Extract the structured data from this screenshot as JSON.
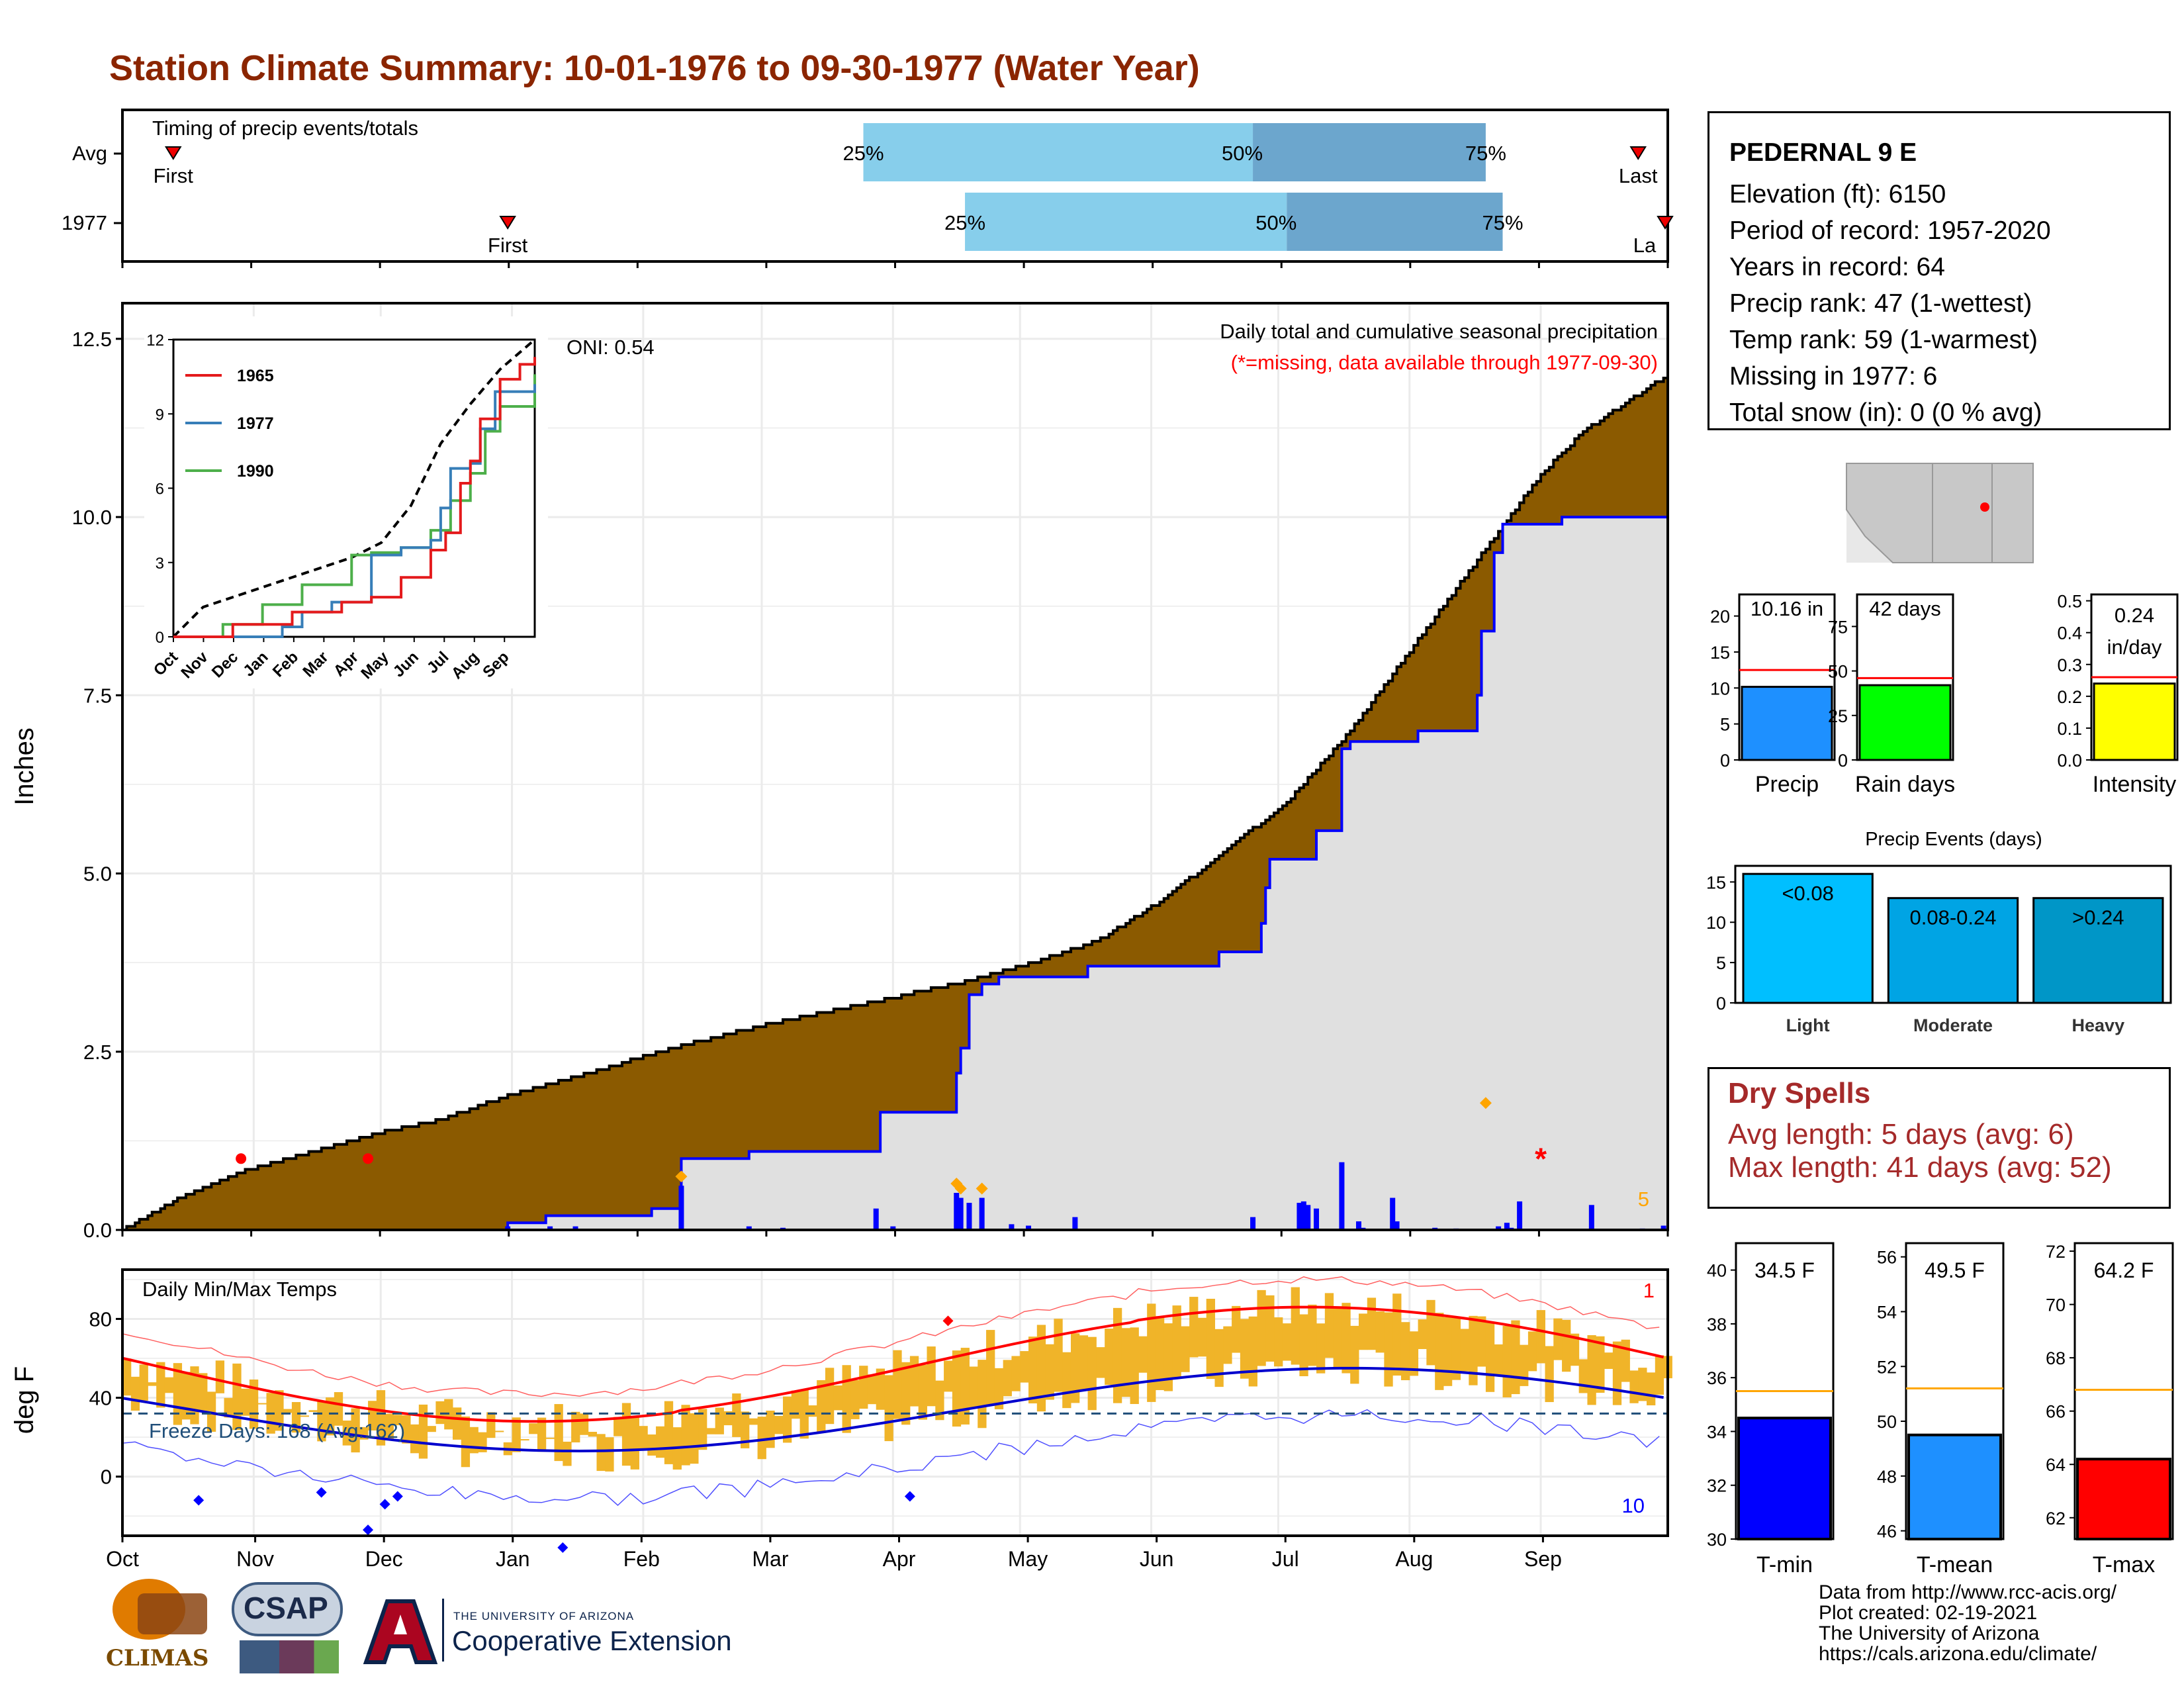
{
  "title": "Station Climate Summary: 10-01-1976 to 09-30-1977 (Water Year)",
  "colors": {
    "title": "#8b2500",
    "cum_avg": "#8b5a00",
    "cum_year": "#e0e0e0",
    "daily_bar": "#0000ff",
    "accent_red": "#ff0000",
    "temp_band": "#f0b429",
    "tmax_line": "#ff0000",
    "tmin_line": "#0000cd"
  },
  "months": [
    "Oct",
    "Nov",
    "Dec",
    "Jan",
    "Feb",
    "Mar",
    "Apr",
    "May",
    "Jun",
    "Jul",
    "Aug",
    "Sep"
  ],
  "timing": {
    "label": "Timing of precip events/totals",
    "rows": [
      {
        "label": "Avg",
        "first_day": 12,
        "p25_day": 175,
        "p50_day": 267,
        "p75_day": 322,
        "last_day": 358,
        "first_label": "First",
        "last_label": "Last"
      },
      {
        "label": "1977",
        "first_day": 91,
        "p25_day": 199,
        "p50_day": 275,
        "p75_day": 326,
        "last_day": 365,
        "first_label": "First",
        "last_label": "La"
      }
    ],
    "pct_labels": [
      "25%",
      "50%",
      "75%"
    ]
  },
  "precip": {
    "ylabel": "Inches",
    "yticks": [
      "0.0",
      "2.5",
      "5.0",
      "7.5",
      "10.0",
      "12.5"
    ],
    "ylim": [
      0,
      13.0
    ],
    "note1": "Daily total and cumulative seasonal precipitation",
    "note2": "(*=missing, data available through 1977-09-30)",
    "oni": "ONI: 0.54",
    "count_label": "5",
    "avg_cumulative_points": [
      [
        0,
        0
      ],
      [
        15,
        0.5
      ],
      [
        30,
        0.85
      ],
      [
        45,
        1.1
      ],
      [
        60,
        1.35
      ],
      [
        75,
        1.55
      ],
      [
        92,
        1.9
      ],
      [
        110,
        2.2
      ],
      [
        130,
        2.55
      ],
      [
        150,
        2.85
      ],
      [
        170,
        3.1
      ],
      [
        185,
        3.3
      ],
      [
        200,
        3.5
      ],
      [
        215,
        3.75
      ],
      [
        230,
        4.05
      ],
      [
        245,
        4.6
      ],
      [
        260,
        5.3
      ],
      [
        275,
        6.0
      ],
      [
        290,
        7.0
      ],
      [
        305,
        8.2
      ],
      [
        315,
        9.0
      ],
      [
        325,
        9.8
      ],
      [
        335,
        10.6
      ],
      [
        345,
        11.2
      ],
      [
        355,
        11.6
      ],
      [
        365,
        12.0
      ]
    ],
    "year_cumulative_points": [
      [
        0,
        0
      ],
      [
        90,
        0
      ],
      [
        91,
        0.1
      ],
      [
        100,
        0.2
      ],
      [
        125,
        0.3
      ],
      [
        132,
        1.0
      ],
      [
        148,
        1.1
      ],
      [
        178,
        1.1
      ],
      [
        179,
        1.65
      ],
      [
        195,
        1.65
      ],
      [
        197,
        2.2
      ],
      [
        198,
        2.55
      ],
      [
        200,
        3.3
      ],
      [
        203,
        3.45
      ],
      [
        207,
        3.55
      ],
      [
        220,
        3.55
      ],
      [
        228,
        3.7
      ],
      [
        248,
        3.7
      ],
      [
        259,
        3.9
      ],
      [
        268,
        3.9
      ],
      [
        269,
        4.3
      ],
      [
        270,
        4.8
      ],
      [
        271,
        5.2
      ],
      [
        282,
        5.6
      ],
      [
        288,
        6.75
      ],
      [
        290,
        6.85
      ],
      [
        306,
        7.0
      ],
      [
        320,
        7.5
      ],
      [
        321,
        8.4
      ],
      [
        324,
        9.5
      ],
      [
        326,
        9.9
      ],
      [
        340,
        10.0
      ],
      [
        361,
        10.0
      ],
      [
        365,
        10.16
      ]
    ],
    "daily_events": [
      [
        91,
        0.05
      ],
      [
        101,
        0.05
      ],
      [
        107,
        0.05
      ],
      [
        132,
        0.62
      ],
      [
        148,
        0.05
      ],
      [
        156,
        0.03
      ],
      [
        178,
        0.3
      ],
      [
        182,
        0.05
      ],
      [
        197,
        0.52
      ],
      [
        198,
        0.45
      ],
      [
        200,
        0.38
      ],
      [
        203,
        0.45
      ],
      [
        210,
        0.08
      ],
      [
        214,
        0.06
      ],
      [
        225,
        0.18
      ],
      [
        267,
        0.18
      ],
      [
        278,
        0.38
      ],
      [
        279,
        0.4
      ],
      [
        280,
        0.35
      ],
      [
        282,
        0.3
      ],
      [
        288,
        0.95
      ],
      [
        292,
        0.12
      ],
      [
        293,
        0.03
      ],
      [
        300,
        0.45
      ],
      [
        301,
        0.12
      ],
      [
        310,
        0.03
      ],
      [
        315,
        0.02
      ],
      [
        327,
        0.1
      ],
      [
        328,
        0.03
      ],
      [
        330,
        0.4
      ],
      [
        325,
        0.05
      ],
      [
        347,
        0.35
      ],
      [
        359,
        0.02
      ],
      [
        364,
        0.06
      ]
    ],
    "missing_markers": [
      [
        28,
        1.0
      ],
      [
        58,
        1.0
      ],
      [
        335,
        1.0
      ]
    ],
    "event_diamonds": [
      [
        132,
        0.62
      ],
      [
        197,
        0.52
      ],
      [
        198,
        0.45
      ],
      [
        203,
        0.45
      ],
      [
        322,
        1.65
      ]
    ]
  },
  "inset": {
    "yticks": [
      "0",
      "3",
      "6",
      "9",
      "12"
    ],
    "months": [
      "Oct",
      "Nov",
      "Dec",
      "Jan",
      "Feb",
      "Mar",
      "Apr",
      "May",
      "Jun",
      "Jul",
      "Aug",
      "Sep"
    ],
    "series": [
      {
        "name": "1965",
        "color": "#e41a1c"
      },
      {
        "name": "1977",
        "color": "#377eb8"
      },
      {
        "name": "1990",
        "color": "#4daf4a"
      }
    ]
  },
  "temp": {
    "ylabel": "deg F",
    "yticks": [
      "0",
      "40",
      "80"
    ],
    "title": "Daily Min/Max Temps",
    "freeze_label": "Freeze Days: 168 (Avg:162)",
    "count_top": "1",
    "count_bottom": "10",
    "freeze_line": 32,
    "xmonths": [
      "Oct",
      "Nov",
      "Dec",
      "Jan",
      "Feb",
      "Mar",
      "Apr",
      "May",
      "Jun",
      "Jul",
      "Aug",
      "Sep"
    ]
  },
  "station": {
    "name": "PEDERNAL 9 E",
    "lines": [
      "Elevation (ft): 6150",
      "Period of record: 1957-2020",
      "Years in record: 64",
      "Precip rank: 47 (1-wettest)",
      "Temp rank: 59 (1-warmest)",
      "Missing in 1977: 6",
      "Total snow (in): 0 (0 % avg)"
    ]
  },
  "mini_bars": [
    {
      "label": "Precip",
      "value": 10.16,
      "avg": 12.5,
      "value_text": "10.16 in",
      "yticks": [
        "0",
        "5",
        "10",
        "15",
        "20"
      ],
      "ymax": 23,
      "color": "#1e90ff"
    },
    {
      "label": "Rain days",
      "value": 42,
      "avg": 46,
      "value_text": "42 days",
      "yticks": [
        "0",
        "25",
        "50",
        "75"
      ],
      "ymax": 93,
      "color": "#00ff00"
    },
    {
      "label": "Intensity",
      "value": 0.24,
      "avg": 0.26,
      "value_text": "0.24 in/day",
      "yticks": [
        "0.0",
        "0.1",
        "0.2",
        "0.3",
        "0.4",
        "0.5"
      ],
      "ymax": 0.52,
      "color": "#ffff00"
    }
  ],
  "events": {
    "title": "Precip Events (days)",
    "yticks": [
      "0",
      "5",
      "10",
      "15"
    ],
    "categories": [
      "Light",
      "Moderate",
      "Heavy"
    ],
    "bar_labels": [
      "<0.08",
      "0.08-0.24",
      ">0.24"
    ],
    "values": [
      16,
      13,
      13
    ],
    "colors": [
      "#00bfff",
      "#00a4e4",
      "#0096c7"
    ]
  },
  "dry_spells": {
    "title": "Dry Spells",
    "avg": "Avg length: 5 days (avg: 6)",
    "max": "Max length: 41 days (avg: 52)"
  },
  "temp_bars": [
    {
      "label": "T-min",
      "value": 34.5,
      "avg": 35.5,
      "value_text": "34.5 F",
      "yticks": [
        "30",
        "32",
        "34",
        "36",
        "38",
        "40"
      ],
      "ymin": 30,
      "ymax": 41,
      "color": "#0000ff"
    },
    {
      "label": "T-mean",
      "value": 49.5,
      "avg": 51.2,
      "value_text": "49.5 F",
      "yticks": [
        "46",
        "48",
        "50",
        "52",
        "54",
        "56"
      ],
      "ymin": 45.7,
      "ymax": 56.5,
      "color": "#1e90ff"
    },
    {
      "label": "T-max",
      "value": 64.2,
      "avg": 66.8,
      "value_text": "64.2 F",
      "yticks": [
        "62",
        "64",
        "66",
        "68",
        "70",
        "72"
      ],
      "ymin": 61.2,
      "ymax": 72.3,
      "color": "#ff0000"
    }
  ],
  "logos": {
    "climas": "CLIMAS",
    "csap": "CSAP",
    "ua_small": "THE UNIVERSITY OF ARIZONA",
    "ua_big": "Cooperative Extension"
  },
  "credits": [
    "Data from http://www.rcc-acis.org/",
    "Plot created: 02-19-2021",
    "The University of Arizona",
    "https://cals.arizona.edu/climate/"
  ]
}
